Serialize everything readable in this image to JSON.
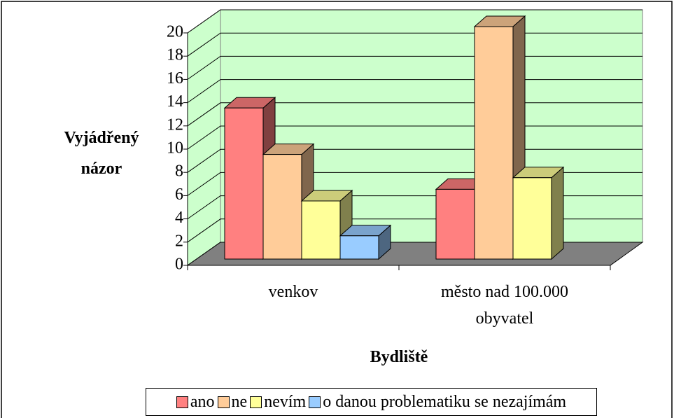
{
  "chart_data": {
    "type": "bar3d",
    "y_label": "Vyjádřený názor",
    "x_label": "Bydliště",
    "categories": [
      "venkov",
      "město nad 100.000 obyvatel"
    ],
    "series": [
      {
        "name": "ano",
        "color": "#ff8080",
        "values": [
          13,
          6
        ]
      },
      {
        "name": "ne",
        "color": "#ffcc99",
        "values": [
          9,
          20
        ]
      },
      {
        "name": "nevím",
        "color": "#ffff99",
        "values": [
          5,
          7
        ]
      },
      {
        "name": "o danou problematiku se nezajímám",
        "color": "#99ccff",
        "values": [
          2,
          null
        ]
      }
    ],
    "ylim": [
      0,
      20
    ],
    "yticks": [
      0,
      2,
      4,
      6,
      8,
      10,
      12,
      14,
      16,
      18,
      20
    ],
    "grid": true,
    "legend": "bottom"
  }
}
